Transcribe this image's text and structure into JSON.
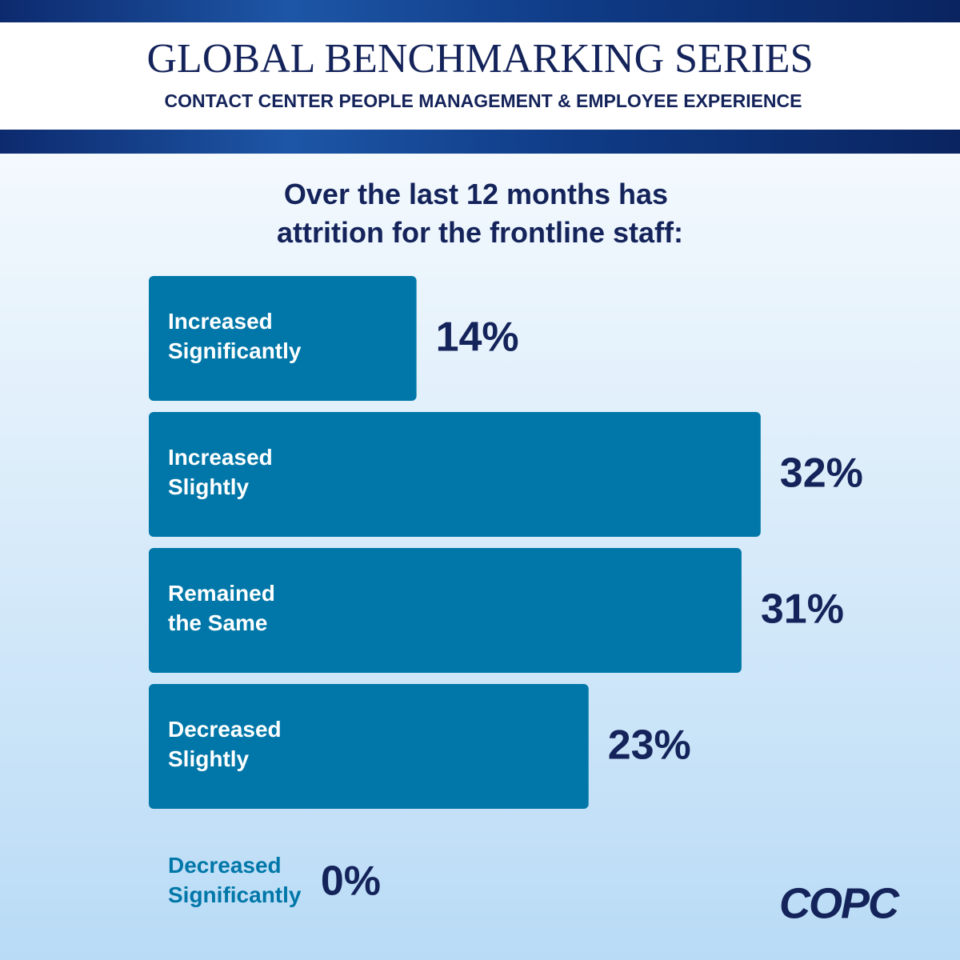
{
  "header": {
    "title": "GLOBAL BENCHMARKING SERIES",
    "subtitle": "CONTACT CENTER PEOPLE MANAGEMENT & EMPLOYEE EXPERIENCE",
    "logo": "COPC"
  },
  "chart_data": {
    "type": "bar",
    "orientation": "horizontal",
    "title": "Over the last 12 months has attrition for the frontline staff:",
    "categories": [
      "Increased Significantly",
      "Increased Slightly",
      "Remained the Same",
      "Decreased Slightly",
      "Decreased Significantly"
    ],
    "values": [
      14,
      32,
      31,
      23,
      0
    ],
    "value_labels": [
      "14%",
      "32%",
      "31%",
      "23%",
      "0%"
    ],
    "color": "#0077a8"
  }
}
